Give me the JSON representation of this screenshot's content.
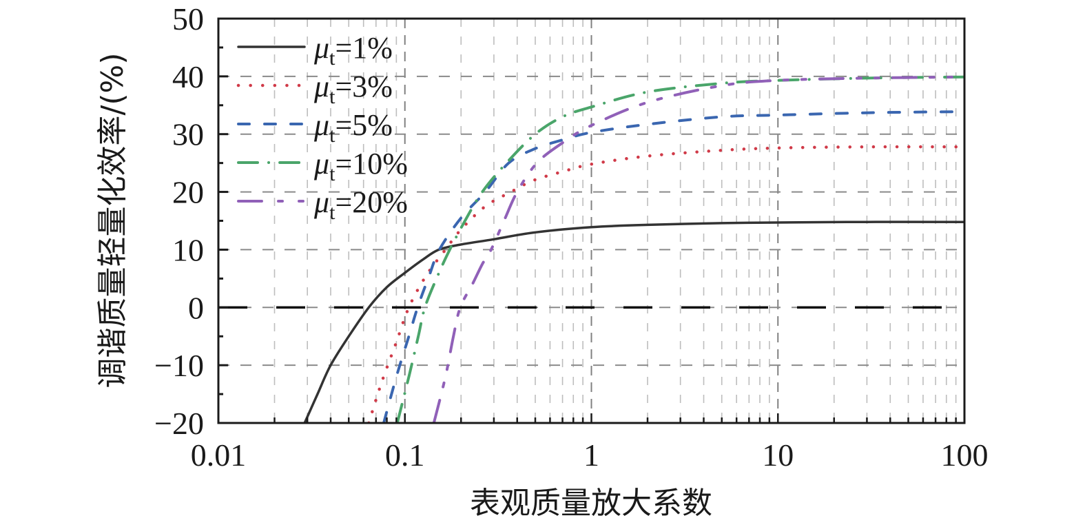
{
  "chart_data": {
    "type": "line",
    "title": "",
    "xlabel": "表观质量放大系数",
    "ylabel": "调谐质量轻量化效率/(%)",
    "xscale": "log",
    "xlim": [
      0.01,
      100
    ],
    "ylim": [
      -20,
      50
    ],
    "xticks": [
      0.01,
      0.1,
      1,
      10,
      100
    ],
    "xtick_labels": [
      "0.01",
      "0.1",
      "1",
      "10",
      "100"
    ],
    "yticks": [
      -20,
      -10,
      0,
      10,
      20,
      30,
      40,
      50
    ],
    "ytick_labels": [
      "−20",
      "−10",
      "0",
      "10",
      "20",
      "30",
      "40",
      "50"
    ],
    "grid": true,
    "legend_position": "upper-left",
    "reference_line": {
      "y": 0,
      "style": "long-dash",
      "color": "#111111"
    },
    "series": [
      {
        "name": "μt=1%",
        "legend_symbol": "μ",
        "legend_sub": "t",
        "legend_value": "=1%",
        "color": "#333333",
        "style": "solid",
        "x": [
          0.029,
          0.034,
          0.04,
          0.05,
          0.064,
          0.08,
          0.1,
          0.125,
          0.152,
          0.2,
          0.3,
          0.5,
          1,
          2,
          5,
          10,
          30,
          100
        ],
        "y": [
          -20,
          -15,
          -10,
          -5,
          0,
          3.5,
          6.0,
          8.3,
          10,
          10.9,
          11.8,
          13.0,
          13.9,
          14.3,
          14.6,
          14.7,
          14.8,
          14.8
        ]
      },
      {
        "name": "μt=3%",
        "legend_symbol": "μ",
        "legend_sub": "t",
        "legend_value": "=3%",
        "color": "#d03a48",
        "style": "dotted",
        "x": [
          0.064,
          0.075,
          0.09,
          0.105,
          0.13,
          0.165,
          0.2,
          0.27,
          0.37,
          0.49,
          0.7,
          1,
          2,
          5,
          10,
          30,
          100
        ],
        "y": [
          -20,
          -13,
          -6,
          0,
          5.5,
          10,
          13.5,
          17.5,
          20,
          22,
          23.5,
          24.8,
          26.2,
          27.2,
          27.6,
          27.8,
          27.8
        ]
      },
      {
        "name": "μt=5%",
        "legend_symbol": "μ",
        "legend_sub": "t",
        "legend_value": "=5%",
        "color": "#3a66b0",
        "style": "dashed",
        "x": [
          0.077,
          0.09,
          0.105,
          0.117,
          0.135,
          0.153,
          0.2,
          0.27,
          0.36,
          0.5,
          0.7,
          1,
          2,
          5,
          10,
          30,
          100
        ],
        "y": [
          -20,
          -12,
          -5,
          0,
          5.5,
          10,
          15.5,
          20,
          25,
          27.5,
          29,
          30.3,
          31.7,
          33.0,
          33.3,
          33.7,
          33.9
        ]
      },
      {
        "name": "μt=10%",
        "legend_symbol": "μ",
        "legend_sub": "t",
        "legend_value": "=10%",
        "color": "#4aa56a",
        "style": "dash-dot",
        "x": [
          0.091,
          0.105,
          0.118,
          0.128,
          0.15,
          0.174,
          0.21,
          0.26,
          0.35,
          0.5,
          0.7,
          1,
          2,
          5,
          10,
          30,
          100
        ],
        "y": [
          -20,
          -12,
          -5,
          0,
          5.5,
          10,
          15,
          20,
          25,
          30,
          33,
          34.7,
          37.3,
          38.8,
          39.3,
          39.7,
          39.9
        ]
      },
      {
        "name": "μt=20%",
        "legend_symbol": "μ",
        "legend_sub": "t",
        "legend_value": "=20%",
        "color": "#9060b8",
        "style": "dash-dot-dot",
        "x": [
          0.143,
          0.165,
          0.182,
          0.198,
          0.23,
          0.26,
          0.29,
          0.34,
          0.4,
          0.51,
          0.7,
          1,
          2,
          5,
          10,
          30,
          100
        ],
        "y": [
          -20,
          -12,
          -5,
          0,
          4,
          7.5,
          10,
          15,
          20,
          25,
          28.5,
          31.5,
          35.5,
          38.4,
          39.3,
          39.7,
          39.9
        ]
      }
    ]
  }
}
